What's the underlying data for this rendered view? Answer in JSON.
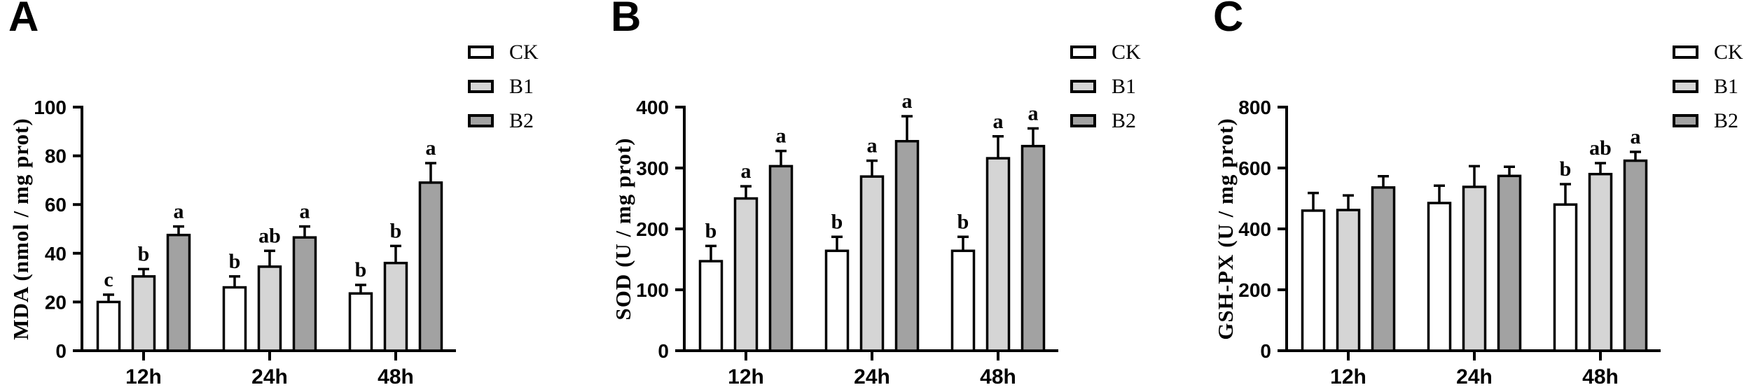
{
  "figure": {
    "background": "#ffffff",
    "axis_color": "#000000",
    "bar_stroke_color": "#000000"
  },
  "legend": {
    "position": "top-right",
    "items": [
      {
        "label": "CK",
        "fill": "#ffffff"
      },
      {
        "label": "B1",
        "fill": "#d5d5d5"
      },
      {
        "label": "B2",
        "fill": "#a2a2a2"
      }
    ]
  },
  "chart_data": [
    {
      "panel_letter": "A",
      "type": "bar",
      "title": "",
      "xlabel": "",
      "ylabel": "MDA (nmol / mg prot)",
      "ylim": [
        0,
        100
      ],
      "yticks": [
        0,
        20,
        40,
        60,
        80,
        100
      ],
      "grid": false,
      "error_bars": "upper-sd",
      "legend_position": "top-right",
      "categories": [
        "12h",
        "24h",
        "48h"
      ],
      "series": [
        {
          "name": "CK",
          "values": [
            20,
            26,
            23.5
          ],
          "errors": [
            3,
            4.5,
            3.5
          ],
          "sig_letters": [
            "c",
            "b",
            "b"
          ]
        },
        {
          "name": "B1",
          "values": [
            30.5,
            34.5,
            36
          ],
          "errors": [
            3,
            6.5,
            7
          ],
          "sig_letters": [
            "b",
            "ab",
            "b"
          ]
        },
        {
          "name": "B2",
          "values": [
            47.5,
            46.5,
            69
          ],
          "errors": [
            3.5,
            4.5,
            8
          ],
          "sig_letters": [
            "a",
            "a",
            "a"
          ]
        }
      ]
    },
    {
      "panel_letter": "B",
      "type": "bar",
      "title": "",
      "xlabel": "",
      "ylabel": "SOD (U / mg prot)",
      "ylim": [
        0,
        400
      ],
      "yticks": [
        0,
        100,
        200,
        300,
        400
      ],
      "grid": false,
      "error_bars": "upper-sd",
      "legend_position": "top-right",
      "categories": [
        "12h",
        "24h",
        "48h"
      ],
      "series": [
        {
          "name": "CK",
          "values": [
            147,
            164,
            164
          ],
          "errors": [
            25,
            23,
            23
          ],
          "sig_letters": [
            "b",
            "b",
            "b"
          ]
        },
        {
          "name": "B1",
          "values": [
            250,
            286,
            316
          ],
          "errors": [
            20,
            26,
            36
          ],
          "sig_letters": [
            "a",
            "a",
            "a"
          ]
        },
        {
          "name": "B2",
          "values": [
            303,
            344,
            336
          ],
          "errors": [
            25,
            41,
            29
          ],
          "sig_letters": [
            "a",
            "a",
            "a"
          ]
        }
      ]
    },
    {
      "panel_letter": "C",
      "type": "bar",
      "title": "",
      "xlabel": "",
      "ylabel": "GSH-PX (U / mg prot)",
      "ylim": [
        0,
        800
      ],
      "yticks": [
        0,
        200,
        400,
        600,
        800
      ],
      "grid": false,
      "error_bars": "upper-sd",
      "legend_position": "top-right",
      "categories": [
        "12h",
        "24h",
        "48h"
      ],
      "series": [
        {
          "name": "CK",
          "values": [
            460,
            485,
            480
          ],
          "errors": [
            58,
            57,
            67
          ],
          "sig_letters": [
            "",
            "",
            "b"
          ]
        },
        {
          "name": "B1",
          "values": [
            462,
            538,
            580
          ],
          "errors": [
            48,
            68,
            36
          ],
          "sig_letters": [
            "",
            "",
            "ab"
          ]
        },
        {
          "name": "B2",
          "values": [
            536,
            574,
            624
          ],
          "errors": [
            37,
            30,
            29
          ],
          "sig_letters": [
            "",
            "",
            "a"
          ]
        }
      ]
    }
  ]
}
